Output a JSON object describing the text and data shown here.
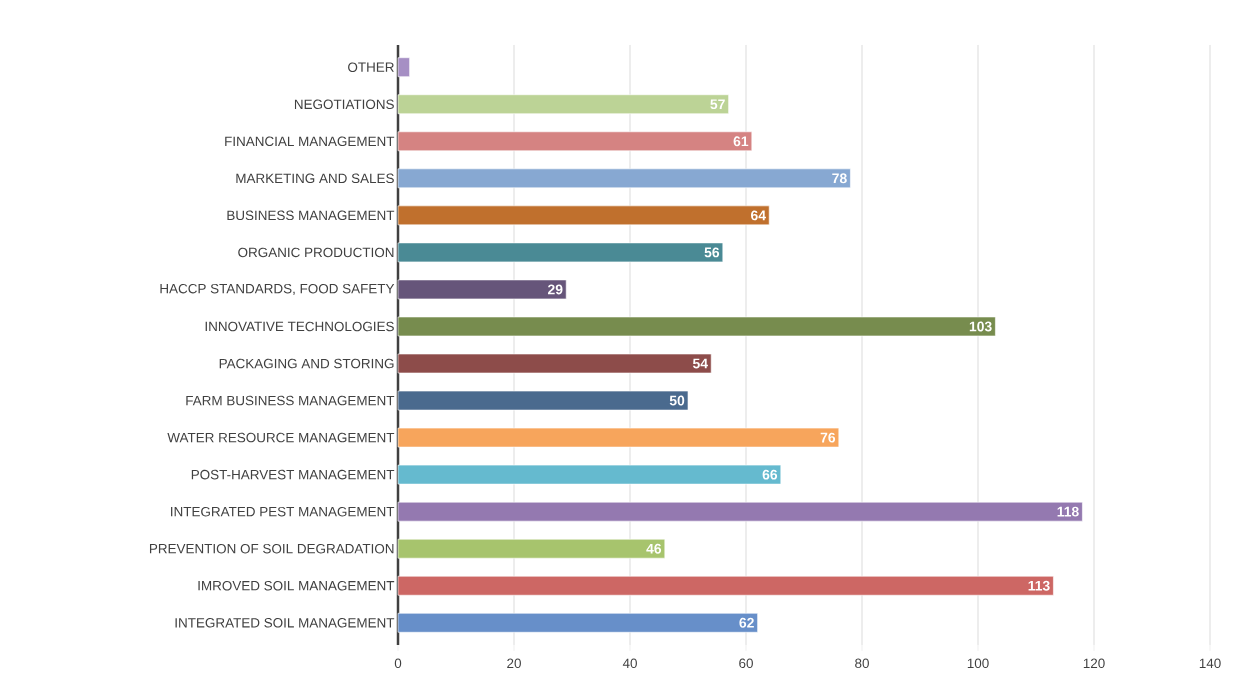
{
  "chart_data": {
    "type": "bar",
    "orientation": "horizontal",
    "categories": [
      "OTHER",
      "NEGOTIATIONS",
      "FINANCIAL MANAGEMENT",
      "MARKETING AND SALES",
      "BUSINESS MANAGEMENT",
      "ORGANIC PRODUCTION",
      "HACCP STANDARDS, FOOD SAFETY",
      "INNOVATIVE TECHNOLOGIES",
      "PACKAGING AND STORING",
      "FARM BUSINESS MANAGEMENT",
      "WATER RESOURCE MANAGEMENT",
      "POST-HARVEST MANAGEMENT",
      "INTEGRATED PEST MANAGEMENT",
      "PREVENTION OF SOIL DEGRADATION",
      "IMROVED SOIL MANAGEMENT",
      "INTEGRATED SOIL MANAGEMENT"
    ],
    "values": [
      2,
      57,
      61,
      78,
      64,
      56,
      29,
      103,
      54,
      50,
      76,
      66,
      118,
      46,
      113,
      62
    ],
    "value_labels": [
      null,
      "57",
      "61",
      "78",
      "64",
      "56",
      "29",
      "103",
      "54",
      "50",
      "76",
      "66",
      "118",
      "46",
      "113",
      "62"
    ],
    "colors": [
      "#a68fc4",
      "#bcd396",
      "#d58382",
      "#87a8d2",
      "#c0702d",
      "#4a8a95",
      "#66557a",
      "#778c4e",
      "#8d4c4a",
      "#4a6a8e",
      "#f7a55c",
      "#65bacf",
      "#9479b0",
      "#a7c46d",
      "#cd6764",
      "#678fc9"
    ],
    "xlim": [
      0,
      140
    ],
    "xticks": [
      0,
      20,
      40,
      60,
      80,
      100,
      120,
      140
    ],
    "grid": "x"
  }
}
